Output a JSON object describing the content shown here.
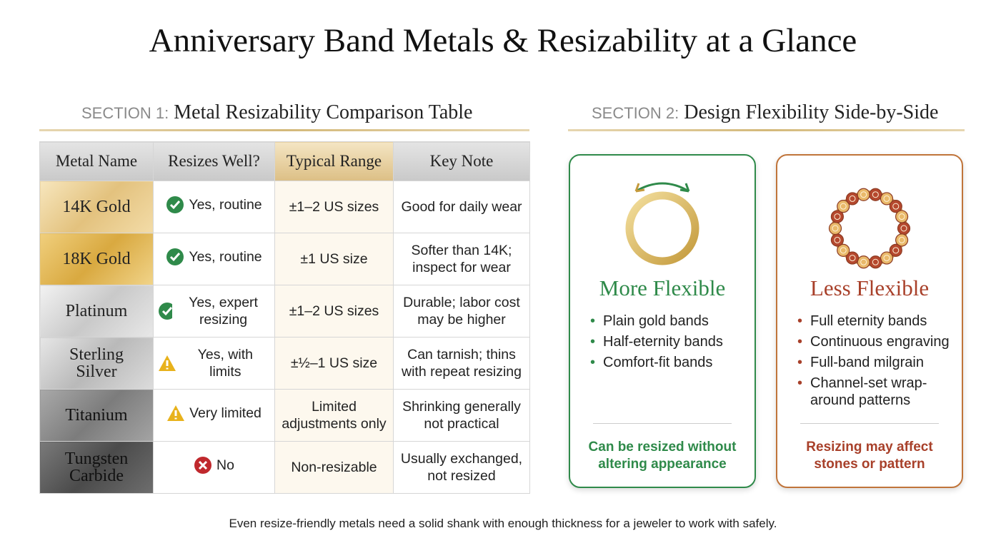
{
  "title": "Anniversary Band Metals & Resizability at a Glance",
  "section1": {
    "label": "SECTION 1:",
    "heading": "Metal Resizability Comparison Table"
  },
  "table": {
    "columns": [
      "Metal Name",
      "Resizes Well?",
      "Typical Range",
      "Key Note"
    ],
    "rows": [
      [
        "14K Gold",
        "Yes, routine",
        "±1–2 US sizes",
        "Good for daily wear"
      ],
      [
        "18K Gold",
        "Yes, routine",
        "±1 US size",
        "Softer than 14K; inspect for wear"
      ],
      [
        "Platinum",
        "Yes, expert resizing",
        "±1–2 US sizes",
        "Durable; labor cost may be higher"
      ],
      [
        "Sterling Silver",
        "Yes, with limits",
        "±½–1 US size",
        "Can tarnish; thins with repeat resizing"
      ],
      [
        "Titanium",
        "Very limited",
        "Limited adjustments only",
        "Shrinking generally not practical"
      ],
      [
        "Tungsten Carbide",
        "No",
        "Non-resizable",
        "Usually exchanged, not resized"
      ]
    ]
  },
  "section2": {
    "label": "SECTION 2:",
    "heading": "Design Flexibility Side-by-Side"
  },
  "cards": [
    {
      "title": "More Flexible",
      "items": [
        "Plain gold bands",
        "Half-eternity bands",
        "Comfort-fit bands"
      ],
      "note": "Can be resized without altering appearance"
    },
    {
      "title": "Less Flexible",
      "items": [
        "Full eternity bands",
        "Continuous engraving",
        "Full-band milgrain",
        "Channel-set wrap-around patterns"
      ],
      "note": "Resizing may affect stones or pattern"
    }
  ],
  "footer": "Even resize-friendly metals need a solid shank with enough thickness for a jeweler to work with safely."
}
